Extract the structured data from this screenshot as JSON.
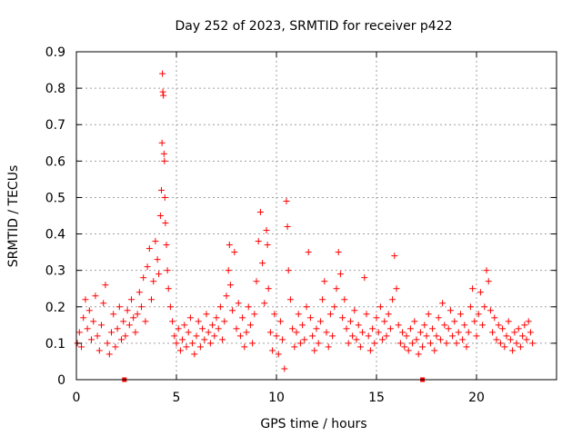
{
  "chart_data": {
    "type": "scatter",
    "title": "Day 252 of 2023, SRMTID for receiver p422",
    "xlabel": "GPS time / hours",
    "ylabel": "SRMTID / TECUs",
    "xlim": [
      0,
      24
    ],
    "ylim": [
      0,
      0.9
    ],
    "xticks": [
      0,
      5,
      10,
      15,
      20
    ],
    "xtick_labels": [
      "0",
      "5",
      "10",
      "15",
      "20"
    ],
    "yticks": [
      0,
      0.1,
      0.2,
      0.3,
      0.4,
      0.5,
      0.6,
      0.7,
      0.8,
      0.9
    ],
    "ytick_labels": [
      "0",
      "0.1",
      "0.2",
      "0.3",
      "0.4",
      "0.5",
      "0.6",
      "0.7",
      "0.8",
      "0.9"
    ],
    "grid": true,
    "marker": "+",
    "series_color": "#ff0000",
    "series": [
      {
        "name": "SRMTID",
        "points": [
          [
            0.05,
            0.1
          ],
          [
            0.15,
            0.13
          ],
          [
            0.25,
            0.09
          ],
          [
            0.35,
            0.17
          ],
          [
            0.45,
            0.22
          ],
          [
            0.55,
            0.14
          ],
          [
            0.65,
            0.19
          ],
          [
            0.75,
            0.11
          ],
          [
            0.85,
            0.16
          ],
          [
            0.95,
            0.23
          ],
          [
            1.05,
            0.12
          ],
          [
            1.15,
            0.08
          ],
          [
            1.25,
            0.15
          ],
          [
            1.35,
            0.21
          ],
          [
            1.45,
            0.26
          ],
          [
            1.55,
            0.1
          ],
          [
            1.65,
            0.07
          ],
          [
            1.75,
            0.13
          ],
          [
            1.85,
            0.18
          ],
          [
            1.95,
            0.09
          ],
          [
            2.05,
            0.14
          ],
          [
            2.15,
            0.2
          ],
          [
            2.25,
            0.11
          ],
          [
            2.35,
            0.16
          ],
          [
            2.45,
            0.12
          ],
          [
            2.55,
            0.19
          ],
          [
            2.65,
            0.15
          ],
          [
            2.75,
            0.22
          ],
          [
            2.85,
            0.17
          ],
          [
            2.95,
            0.13
          ],
          [
            3.05,
            0.18
          ],
          [
            3.15,
            0.24
          ],
          [
            3.25,
            0.2
          ],
          [
            3.35,
            0.28
          ],
          [
            3.45,
            0.16
          ],
          [
            3.55,
            0.31
          ],
          [
            3.65,
            0.36
          ],
          [
            3.75,
            0.22
          ],
          [
            3.85,
            0.27
          ],
          [
            3.95,
            0.38
          ],
          [
            4.05,
            0.33
          ],
          [
            4.12,
            0.29
          ],
          [
            4.2,
            0.45
          ],
          [
            4.25,
            0.52
          ],
          [
            4.28,
            0.65
          ],
          [
            4.3,
            0.84
          ],
          [
            4.32,
            0.79
          ],
          [
            4.35,
            0.78
          ],
          [
            4.38,
            0.62
          ],
          [
            4.4,
            0.6
          ],
          [
            4.42,
            0.5
          ],
          [
            4.45,
            0.43
          ],
          [
            4.5,
            0.37
          ],
          [
            4.55,
            0.3
          ],
          [
            4.6,
            0.25
          ],
          [
            4.7,
            0.2
          ],
          [
            4.8,
            0.16
          ],
          [
            4.9,
            0.12
          ],
          [
            5.0,
            0.1
          ],
          [
            5.1,
            0.14
          ],
          [
            5.2,
            0.08
          ],
          [
            5.3,
            0.11
          ],
          [
            5.4,
            0.15
          ],
          [
            5.5,
            0.09
          ],
          [
            5.6,
            0.13
          ],
          [
            5.7,
            0.17
          ],
          [
            5.8,
            0.1
          ],
          [
            5.9,
            0.07
          ],
          [
            6.0,
            0.12
          ],
          [
            6.1,
            0.16
          ],
          [
            6.2,
            0.09
          ],
          [
            6.3,
            0.14
          ],
          [
            6.4,
            0.11
          ],
          [
            6.5,
            0.18
          ],
          [
            6.6,
            0.13
          ],
          [
            6.7,
            0.1
          ],
          [
            6.8,
            0.15
          ],
          [
            6.9,
            0.12
          ],
          [
            7.0,
            0.17
          ],
          [
            7.1,
            0.14
          ],
          [
            7.2,
            0.2
          ],
          [
            7.3,
            0.11
          ],
          [
            7.4,
            0.16
          ],
          [
            7.5,
            0.23
          ],
          [
            7.6,
            0.3
          ],
          [
            7.65,
            0.37
          ],
          [
            7.7,
            0.26
          ],
          [
            7.8,
            0.19
          ],
          [
            7.9,
            0.35
          ],
          [
            8.0,
            0.14
          ],
          [
            8.1,
            0.21
          ],
          [
            8.2,
            0.12
          ],
          [
            8.3,
            0.17
          ],
          [
            8.4,
            0.09
          ],
          [
            8.5,
            0.13
          ],
          [
            8.6,
            0.2
          ],
          [
            8.7,
            0.15
          ],
          [
            8.8,
            0.1
          ],
          [
            8.9,
            0.18
          ],
          [
            9.0,
            0.27
          ],
          [
            9.1,
            0.38
          ],
          [
            9.2,
            0.46
          ],
          [
            9.3,
            0.32
          ],
          [
            9.4,
            0.21
          ],
          [
            9.5,
            0.41
          ],
          [
            9.55,
            0.37
          ],
          [
            9.6,
            0.25
          ],
          [
            9.7,
            0.13
          ],
          [
            9.8,
            0.08
          ],
          [
            9.9,
            0.18
          ],
          [
            10.0,
            0.12
          ],
          [
            10.1,
            0.07
          ],
          [
            10.2,
            0.16
          ],
          [
            10.3,
            0.11
          ],
          [
            10.4,
            0.03
          ],
          [
            10.5,
            0.49
          ],
          [
            10.55,
            0.42
          ],
          [
            10.6,
            0.3
          ],
          [
            10.7,
            0.22
          ],
          [
            10.8,
            0.14
          ],
          [
            10.9,
            0.09
          ],
          [
            11.0,
            0.13
          ],
          [
            11.1,
            0.18
          ],
          [
            11.2,
            0.1
          ],
          [
            11.3,
            0.15
          ],
          [
            11.4,
            0.11
          ],
          [
            11.5,
            0.2
          ],
          [
            11.6,
            0.35
          ],
          [
            11.7,
            0.17
          ],
          [
            11.8,
            0.12
          ],
          [
            11.9,
            0.08
          ],
          [
            12.0,
            0.14
          ],
          [
            12.1,
            0.1
          ],
          [
            12.2,
            0.16
          ],
          [
            12.3,
            0.22
          ],
          [
            12.4,
            0.27
          ],
          [
            12.5,
            0.13
          ],
          [
            12.6,
            0.09
          ],
          [
            12.7,
            0.18
          ],
          [
            12.8,
            0.12
          ],
          [
            12.9,
            0.2
          ],
          [
            13.0,
            0.25
          ],
          [
            13.1,
            0.35
          ],
          [
            13.2,
            0.29
          ],
          [
            13.3,
            0.17
          ],
          [
            13.4,
            0.22
          ],
          [
            13.5,
            0.14
          ],
          [
            13.6,
            0.1
          ],
          [
            13.7,
            0.16
          ],
          [
            13.8,
            0.12
          ],
          [
            13.9,
            0.19
          ],
          [
            14.0,
            0.11
          ],
          [
            14.1,
            0.15
          ],
          [
            14.2,
            0.09
          ],
          [
            14.3,
            0.13
          ],
          [
            14.4,
            0.28
          ],
          [
            14.5,
            0.18
          ],
          [
            14.6,
            0.12
          ],
          [
            14.7,
            0.08
          ],
          [
            14.8,
            0.14
          ],
          [
            14.9,
            0.1
          ],
          [
            15.0,
            0.17
          ],
          [
            15.1,
            0.13
          ],
          [
            15.2,
            0.2
          ],
          [
            15.3,
            0.11
          ],
          [
            15.4,
            0.16
          ],
          [
            15.5,
            0.12
          ],
          [
            15.6,
            0.18
          ],
          [
            15.7,
            0.14
          ],
          [
            15.8,
            0.22
          ],
          [
            15.9,
            0.34
          ],
          [
            16.0,
            0.25
          ],
          [
            16.1,
            0.15
          ],
          [
            16.2,
            0.1
          ],
          [
            16.3,
            0.13
          ],
          [
            16.4,
            0.09
          ],
          [
            16.5,
            0.12
          ],
          [
            16.6,
            0.08
          ],
          [
            16.7,
            0.14
          ],
          [
            16.8,
            0.1
          ],
          [
            16.9,
            0.16
          ],
          [
            17.0,
            0.11
          ],
          [
            17.1,
            0.07
          ],
          [
            17.2,
            0.13
          ],
          [
            17.3,
            0.09
          ],
          [
            17.4,
            0.15
          ],
          [
            17.5,
            0.12
          ],
          [
            17.6,
            0.18
          ],
          [
            17.7,
            0.1
          ],
          [
            17.8,
            0.14
          ],
          [
            17.9,
            0.08
          ],
          [
            18.0,
            0.12
          ],
          [
            18.1,
            0.17
          ],
          [
            18.2,
            0.11
          ],
          [
            18.3,
            0.21
          ],
          [
            18.4,
            0.15
          ],
          [
            18.5,
            0.1
          ],
          [
            18.6,
            0.14
          ],
          [
            18.7,
            0.19
          ],
          [
            18.8,
            0.12
          ],
          [
            18.9,
            0.16
          ],
          [
            19.0,
            0.1
          ],
          [
            19.1,
            0.13
          ],
          [
            19.2,
            0.18
          ],
          [
            19.3,
            0.11
          ],
          [
            19.4,
            0.15
          ],
          [
            19.5,
            0.09
          ],
          [
            19.6,
            0.13
          ],
          [
            19.7,
            0.2
          ],
          [
            19.8,
            0.25
          ],
          [
            19.9,
            0.16
          ],
          [
            20.0,
            0.12
          ],
          [
            20.1,
            0.18
          ],
          [
            20.2,
            0.24
          ],
          [
            20.3,
            0.15
          ],
          [
            20.4,
            0.2
          ],
          [
            20.5,
            0.3
          ],
          [
            20.6,
            0.27
          ],
          [
            20.7,
            0.19
          ],
          [
            20.8,
            0.13
          ],
          [
            20.9,
            0.17
          ],
          [
            21.0,
            0.11
          ],
          [
            21.1,
            0.15
          ],
          [
            21.2,
            0.1
          ],
          [
            21.3,
            0.14
          ],
          [
            21.4,
            0.09
          ],
          [
            21.5,
            0.12
          ],
          [
            21.6,
            0.16
          ],
          [
            21.7,
            0.11
          ],
          [
            21.8,
            0.08
          ],
          [
            21.9,
            0.13
          ],
          [
            22.0,
            0.1
          ],
          [
            22.1,
            0.14
          ],
          [
            22.2,
            0.09
          ],
          [
            22.3,
            0.12
          ],
          [
            22.4,
            0.15
          ],
          [
            22.5,
            0.11
          ],
          [
            22.6,
            0.16
          ],
          [
            22.7,
            0.13
          ],
          [
            22.8,
            0.1
          ]
        ]
      }
    ],
    "baseline_markers": [
      2.4,
      17.3
    ]
  }
}
